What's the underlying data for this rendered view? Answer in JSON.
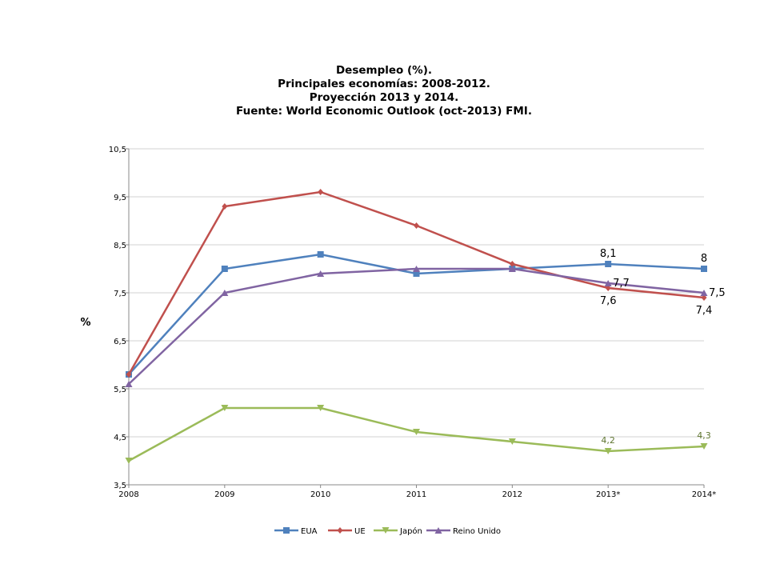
{
  "chart_data": {
    "type": "line",
    "title": [
      "Desempleo (%).",
      "Principales economías: 2008-2012.",
      "Proyección 2013 y 2014.",
      "Fuente: World Economic Outlook (oct-2013) FMI."
    ],
    "xlabel": "",
    "ylabel": "%",
    "ylim": [
      3.5,
      10.5
    ],
    "yticks": [
      "3,5",
      "4,5",
      "5,5",
      "6,5",
      "7,5",
      "8,5",
      "9,5",
      "10,5"
    ],
    "ytick_values": [
      3.5,
      4.5,
      5.5,
      6.5,
      7.5,
      8.5,
      9.5,
      10.5
    ],
    "grid": true,
    "legend_position": "bottom",
    "categories": [
      "2008",
      "2009",
      "2010",
      "2011",
      "2012",
      "2013*",
      "2014*"
    ],
    "series": [
      {
        "name": "EUA",
        "color": "#4F81BD",
        "marker": "square",
        "values": [
          5.8,
          8.0,
          8.3,
          7.9,
          8.0,
          8.1,
          8.0
        ],
        "labels": [
          null,
          null,
          null,
          null,
          null,
          "8,1",
          "8"
        ],
        "label_pos": "above"
      },
      {
        "name": "UE",
        "color": "#C0504D",
        "marker": "diamond",
        "values": [
          5.8,
          9.3,
          9.6,
          8.9,
          8.1,
          7.6,
          7.4
        ],
        "labels": [
          null,
          null,
          null,
          null,
          null,
          "7,6",
          "7,4"
        ],
        "label_pos": "below"
      },
      {
        "name": "Japón",
        "color": "#9BBB59",
        "marker": "triangle-down",
        "values": [
          4.0,
          5.1,
          5.1,
          4.6,
          4.4,
          4.2,
          4.3
        ],
        "labels": [
          null,
          null,
          null,
          null,
          null,
          "4,2",
          "4,3"
        ],
        "label_pos": "above-small"
      },
      {
        "name": "Reino Unido",
        "color": "#8064A2",
        "marker": "triangle-up",
        "values": [
          5.6,
          7.5,
          7.9,
          8.0,
          8.0,
          7.7,
          7.5
        ],
        "labels": [
          null,
          null,
          null,
          null,
          null,
          "7,7",
          "7,5"
        ],
        "label_pos": "right"
      }
    ]
  }
}
